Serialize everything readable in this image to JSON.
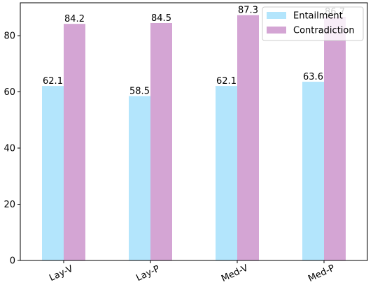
{
  "chart_data": {
    "type": "bar",
    "categories": [
      "Lay-V",
      "Lay-P",
      "Med-V",
      "Med-P"
    ],
    "series": [
      {
        "name": "Entailment",
        "values": [
          62.1,
          58.5,
          62.1,
          63.6
        ],
        "color": "#b3e5fc"
      },
      {
        "name": "Contradiction",
        "values": [
          84.2,
          84.5,
          87.3,
          86.7
        ],
        "color": "#d4a5d4"
      }
    ],
    "data_labels": [
      [
        "62.1",
        "58.5",
        "62.1",
        "63.6"
      ],
      [
        "84.2",
        "84.5",
        "87.3",
        "86.7"
      ]
    ],
    "title": "",
    "xlabel": "",
    "ylabel": "",
    "ylim": [
      0,
      91.7
    ],
    "yticks": [
      0,
      20,
      40,
      60,
      80
    ],
    "ytick_labels": [
      "0",
      "20",
      "40",
      "60",
      "80"
    ],
    "legend_position": "top-right",
    "grid": false,
    "xtick_rotation_deg": -25
  }
}
